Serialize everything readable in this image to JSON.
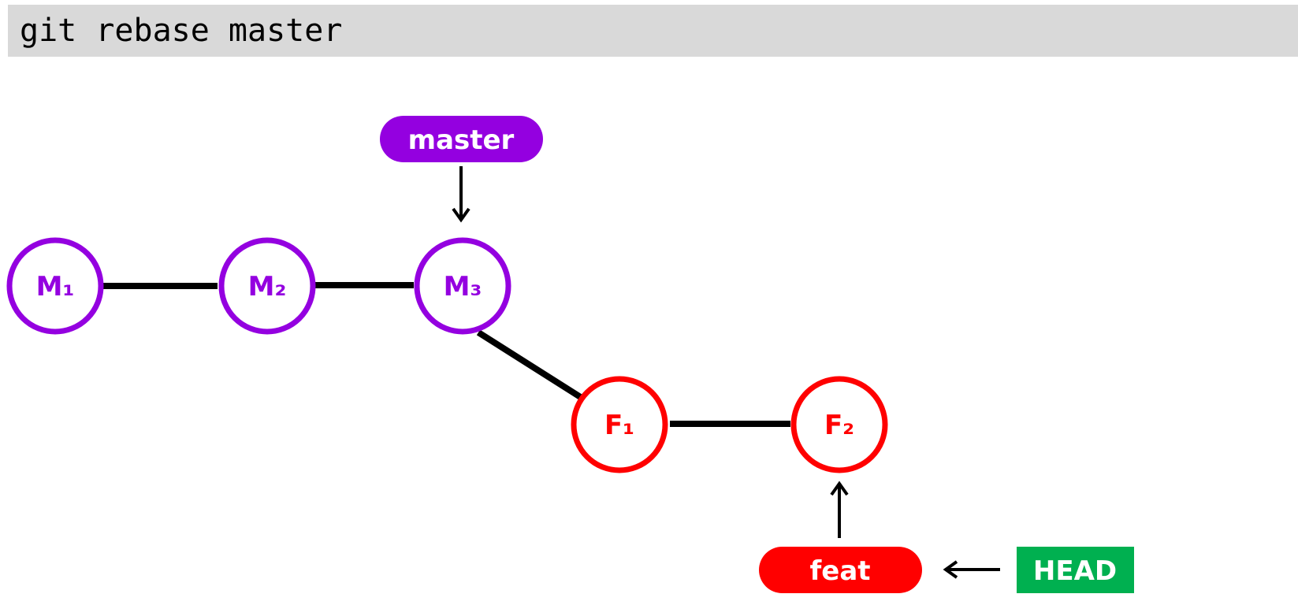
{
  "command": {
    "text": "git rebase master"
  },
  "colors": {
    "master": "#9400e0",
    "feature": "#ff0000",
    "head": "#00b050",
    "edge": "#000000",
    "command_bg": "#d9d9d9"
  },
  "commits": {
    "m1": {
      "label": "M₁",
      "branch": "master"
    },
    "m2": {
      "label": "M₂",
      "branch": "master"
    },
    "m3": {
      "label": "M₃",
      "branch": "master"
    },
    "f1": {
      "label": "F₁",
      "branch": "feat"
    },
    "f2": {
      "label": "F₂",
      "branch": "feat"
    }
  },
  "edges": [
    {
      "from": "M1",
      "to": "M2"
    },
    {
      "from": "M2",
      "to": "M3"
    },
    {
      "from": "M3",
      "to": "F1"
    },
    {
      "from": "F1",
      "to": "F2"
    }
  ],
  "refs": {
    "master": {
      "label": "master",
      "points_to": "M3"
    },
    "feat": {
      "label": "feat",
      "points_to": "F2"
    },
    "head": {
      "label": "HEAD",
      "points_to": "feat"
    }
  }
}
